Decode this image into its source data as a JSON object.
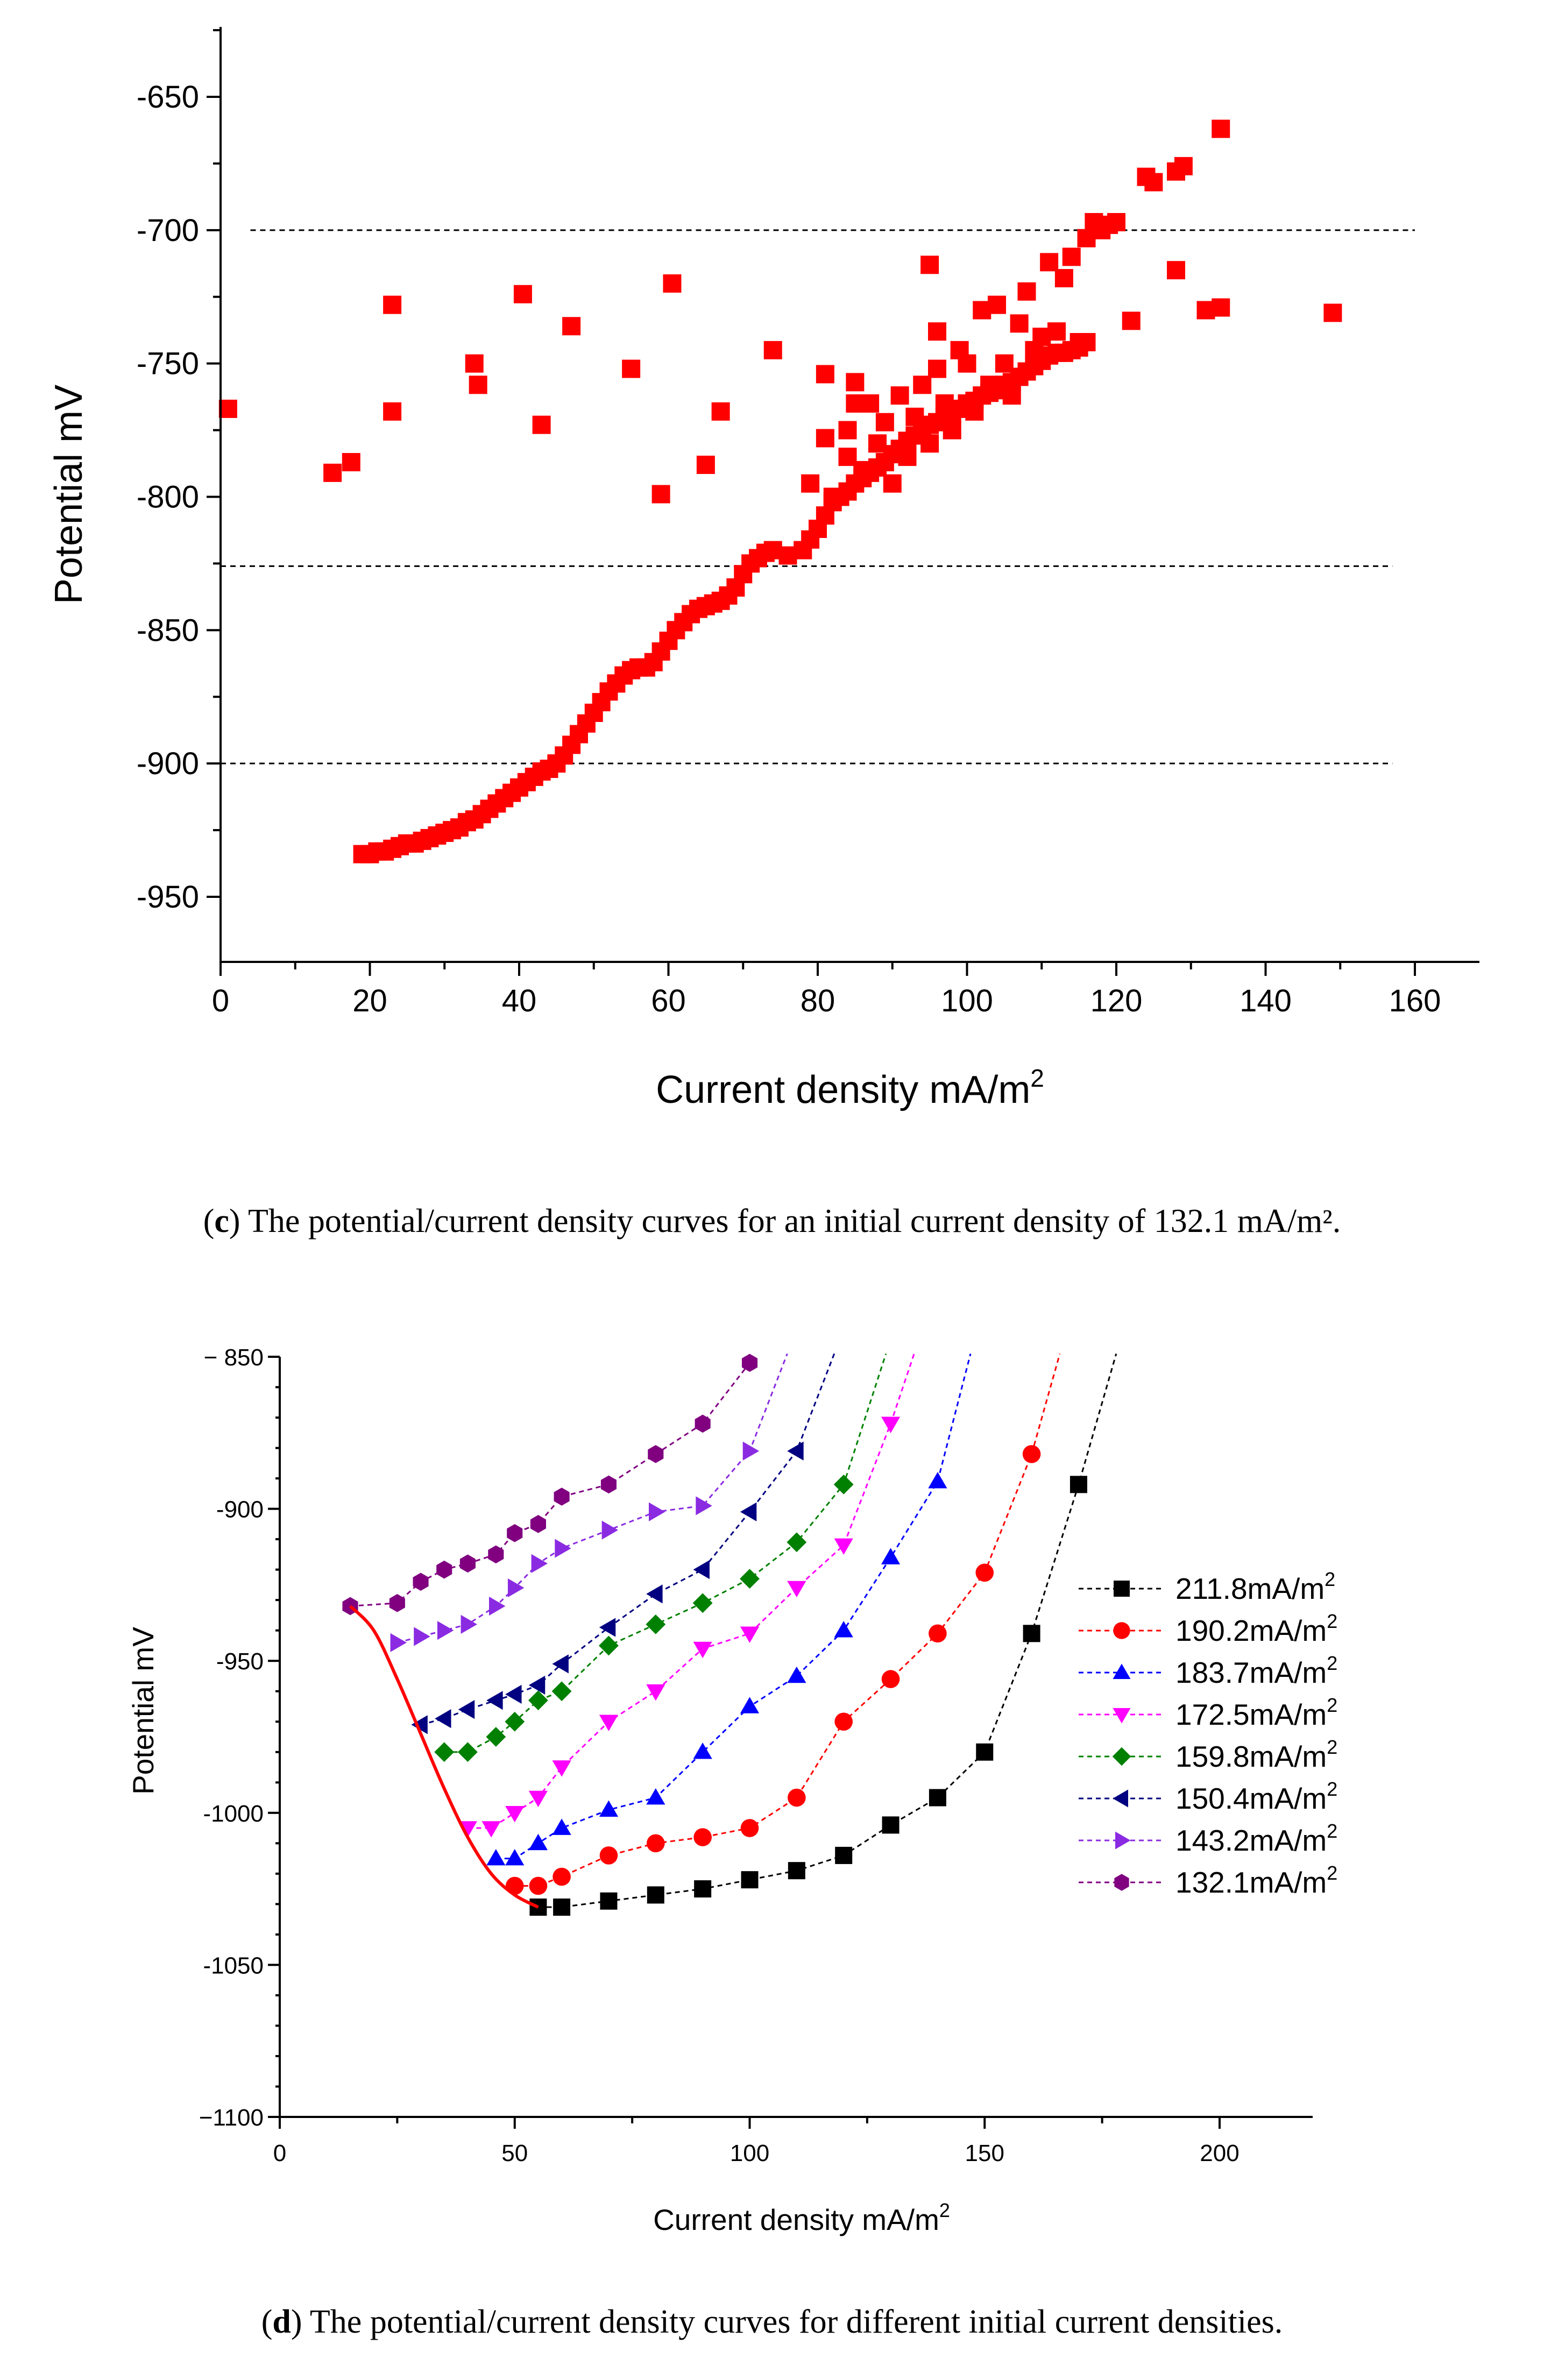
{
  "caption_c": {
    "letter": "c",
    "text": " The potential/current density curves for an initial current density of 132.1 mA/m²."
  },
  "caption_d": {
    "letter": "d",
    "text": " The potential/current density curves for different initial current densities."
  },
  "chart_data": [
    {
      "type": "scatter",
      "title": "",
      "xlabel": "Current density mA/m",
      "xlabel_sup": "2",
      "ylabel": "Potential mV",
      "xlim": [
        0,
        170
      ],
      "ylim": [
        -975,
        -620
      ],
      "xticks": [
        0,
        20,
        40,
        60,
        80,
        100,
        120,
        140,
        160
      ],
      "xtick_labels": [
        "0",
        "20",
        "40",
        "60",
        "80",
        "100",
        "120",
        "140",
        "160"
      ],
      "yticks": [
        -950,
        -900,
        -850,
        -800,
        -750,
        -700,
        -650
      ],
      "ytick_labels": [
        "-950",
        "-900",
        "-850",
        "-800",
        "-750",
        "-700",
        "-650"
      ],
      "reference_lines": [
        {
          "y": -700,
          "x0": 4,
          "x1": 160
        },
        {
          "y": -826,
          "x0": 0,
          "x1": 157
        },
        {
          "y": -900,
          "x0": 0,
          "x1": 157
        }
      ],
      "marker": "square",
      "color": "#ff0000",
      "points": [
        [
          1,
          -767
        ],
        [
          15,
          -791
        ],
        [
          17.5,
          -787
        ],
        [
          23,
          -768
        ],
        [
          23,
          -728
        ],
        [
          34,
          -750
        ],
        [
          34.5,
          -758
        ],
        [
          40.5,
          -724
        ],
        [
          43,
          -773
        ],
        [
          47,
          -736
        ],
        [
          55,
          -752
        ],
        [
          59,
          -799
        ],
        [
          60.5,
          -720
        ],
        [
          65,
          -788
        ],
        [
          67,
          -768
        ],
        [
          74,
          -745
        ],
        [
          81,
          -754
        ],
        [
          95,
          -713
        ],
        [
          122,
          -734
        ],
        [
          128,
          -715
        ],
        [
          132,
          -730
        ],
        [
          134,
          -729
        ],
        [
          149,
          -731
        ],
        [
          19,
          -934
        ],
        [
          20,
          -934
        ],
        [
          21,
          -933
        ],
        [
          22,
          -933
        ],
        [
          23,
          -932
        ],
        [
          24,
          -931
        ],
        [
          25,
          -930
        ],
        [
          26,
          -930
        ],
        [
          27,
          -929
        ],
        [
          28,
          -928
        ],
        [
          29,
          -927
        ],
        [
          30,
          -926
        ],
        [
          31,
          -925
        ],
        [
          32,
          -924
        ],
        [
          33,
          -922
        ],
        [
          34,
          -921
        ],
        [
          35,
          -919
        ],
        [
          36,
          -917
        ],
        [
          37,
          -915
        ],
        [
          38,
          -913
        ],
        [
          39,
          -911
        ],
        [
          40,
          -909
        ],
        [
          41,
          -907
        ],
        [
          42,
          -905
        ],
        [
          43,
          -903
        ],
        [
          44,
          -902
        ],
        [
          45,
          -900
        ],
        [
          46,
          -897
        ],
        [
          47,
          -893
        ],
        [
          48,
          -889
        ],
        [
          49,
          -885
        ],
        [
          50,
          -881
        ],
        [
          51,
          -877
        ],
        [
          52,
          -873
        ],
        [
          53,
          -870
        ],
        [
          54,
          -867
        ],
        [
          55,
          -865
        ],
        [
          56,
          -864
        ],
        [
          57,
          -864
        ],
        [
          58,
          -862
        ],
        [
          59,
          -858
        ],
        [
          60,
          -854
        ],
        [
          61,
          -850
        ],
        [
          62,
          -847
        ],
        [
          63,
          -844
        ],
        [
          64,
          -842
        ],
        [
          65,
          -841
        ],
        [
          66,
          -840
        ],
        [
          67,
          -839
        ],
        [
          68,
          -837
        ],
        [
          69,
          -834
        ],
        [
          70,
          -829
        ],
        [
          71,
          -825
        ],
        [
          72,
          -823
        ],
        [
          73,
          -821
        ],
        [
          74,
          -820
        ],
        [
          76,
          -822
        ],
        [
          78,
          -820
        ],
        [
          79,
          -816
        ],
        [
          80,
          -812
        ],
        [
          81,
          -807
        ],
        [
          82,
          -802
        ],
        [
          83,
          -800
        ],
        [
          84,
          -798
        ],
        [
          85,
          -795
        ],
        [
          86,
          -793
        ],
        [
          87,
          -791
        ],
        [
          88,
          -789
        ],
        [
          89,
          -787
        ],
        [
          90,
          -784
        ],
        [
          91,
          -782
        ],
        [
          92,
          -779
        ],
        [
          93,
          -777
        ],
        [
          94,
          -775
        ],
        [
          95,
          -773
        ],
        [
          96,
          -772
        ],
        [
          97,
          -770
        ],
        [
          98,
          -769
        ],
        [
          99,
          -767
        ],
        [
          100,
          -765
        ],
        [
          101,
          -764
        ],
        [
          102,
          -762
        ],
        [
          103,
          -761
        ],
        [
          104,
          -760
        ],
        [
          105,
          -758
        ],
        [
          106,
          -757
        ],
        [
          107,
          -755
        ],
        [
          108,
          -753
        ],
        [
          109,
          -751
        ],
        [
          110,
          -749
        ],
        [
          111,
          -747
        ],
        [
          112,
          -746
        ],
        [
          113,
          -746
        ],
        [
          114,
          -745
        ],
        [
          115,
          -744
        ],
        [
          116,
          -742
        ],
        [
          79,
          -795
        ],
        [
          81,
          -778
        ],
        [
          82,
          -800
        ],
        [
          84,
          -785
        ],
        [
          84,
          -775
        ],
        [
          85,
          -765
        ],
        [
          85,
          -757
        ],
        [
          86,
          -790
        ],
        [
          87,
          -765
        ],
        [
          88,
          -780
        ],
        [
          89,
          -772
        ],
        [
          90,
          -795
        ],
        [
          91,
          -762
        ],
        [
          92,
          -785
        ],
        [
          93,
          -770
        ],
        [
          94,
          -758
        ],
        [
          95,
          -780
        ],
        [
          96,
          -752
        ],
        [
          96,
          -738
        ],
        [
          97,
          -765
        ],
        [
          98,
          -775
        ],
        [
          99,
          -745
        ],
        [
          100,
          -750
        ],
        [
          101,
          -768
        ],
        [
          102,
          -730
        ],
        [
          103,
          -758
        ],
        [
          104,
          -728
        ],
        [
          105,
          -750
        ],
        [
          106,
          -762
        ],
        [
          107,
          -735
        ],
        [
          108,
          -723
        ],
        [
          109,
          -745
        ],
        [
          110,
          -740
        ],
        [
          111,
          -712
        ],
        [
          112,
          -738
        ],
        [
          113,
          -718
        ],
        [
          114,
          -710
        ],
        [
          115,
          -742
        ],
        [
          116,
          -703
        ],
        [
          117,
          -697
        ],
        [
          118,
          -700
        ],
        [
          119,
          -698
        ],
        [
          120,
          -697
        ],
        [
          124,
          -680
        ],
        [
          125,
          -682
        ],
        [
          128,
          -678
        ],
        [
          129,
          -676
        ],
        [
          134,
          -662
        ]
      ]
    },
    {
      "type": "line",
      "title": "",
      "xlabel": "Current density mA/m",
      "xlabel_sup": "2",
      "ylabel": "Potential mV",
      "xlim": [
        0,
        220
      ],
      "ylim": [
        -1100,
        -850
      ],
      "xticks": [
        0,
        50,
        100,
        150,
        200
      ],
      "xtick_labels": [
        "0",
        "50",
        "100",
        "150",
        "200"
      ],
      "yticks": [
        -1100,
        -1050,
        -1000,
        -950,
        -900,
        -850
      ],
      "ytick_labels": [
        "−1100",
        "-1050",
        "-1000",
        "-950",
        "-900",
        "− 850"
      ],
      "legend_position": "right",
      "series": [
        {
          "name": "211.8mA/m",
          "sup": "2",
          "color": "#000000",
          "marker": "square",
          "x": [
            55,
            60,
            70,
            80,
            90,
            100,
            110,
            120,
            130,
            140,
            150,
            160,
            170
          ],
          "y": [
            -1031,
            -1031,
            -1029,
            -1027,
            -1025,
            -1022,
            -1019,
            -1014,
            -1004,
            -995,
            -980,
            -941,
            -892
          ],
          "tail": [
            178,
            -849
          ]
        },
        {
          "name": "190.2mA/m",
          "sup": "2",
          "color": "#ff0000",
          "marker": "circle",
          "x": [
            50,
            55,
            60,
            70,
            80,
            90,
            100,
            110,
            120,
            130,
            140,
            150,
            160
          ],
          "y": [
            -1024,
            -1024,
            -1021,
            -1014,
            -1010,
            -1008,
            -1005,
            -995,
            -970,
            -956,
            -941,
            -921,
            -882
          ],
          "tail": [
            166,
            -849
          ]
        },
        {
          "name": "183.7mA/m",
          "sup": "2",
          "color": "#0000ff",
          "marker": "triangle-up",
          "x": [
            46,
            50,
            55,
            60,
            70,
            80,
            90,
            100,
            110,
            120,
            130,
            140
          ],
          "y": [
            -1015,
            -1015,
            -1010,
            -1005,
            -999,
            -995,
            -980,
            -965,
            -955,
            -940,
            -916,
            -891
          ],
          "tail": [
            147,
            -849
          ]
        },
        {
          "name": "172.5mA/m",
          "sup": "2",
          "color": "#ff00ff",
          "marker": "triangle-down",
          "x": [
            40,
            45,
            50,
            55,
            60,
            70,
            80,
            90,
            100,
            110,
            120,
            130
          ],
          "y": [
            -1005,
            -1005,
            -1000,
            -995,
            -985,
            -970,
            -960,
            -946,
            -941,
            -926,
            -912,
            -872
          ],
          "tail": [
            135,
            -849
          ]
        },
        {
          "name": "159.8mA/m",
          "sup": "2",
          "color": "#008000",
          "marker": "diamond",
          "x": [
            35,
            40,
            46,
            50,
            55,
            60,
            70,
            80,
            90,
            100,
            110,
            120
          ],
          "y": [
            -980,
            -980,
            -975,
            -970,
            -963,
            -960,
            -945,
            -938,
            -931,
            -923,
            -911,
            -892
          ],
          "tail": [
            129,
            -849
          ]
        },
        {
          "name": "150.4mA/m",
          "sup": "2",
          "color": "#000080",
          "marker": "triangle-left",
          "x": [
            30,
            35,
            40,
            46,
            50,
            55,
            60,
            70,
            80,
            90,
            100,
            110
          ],
          "y": [
            -971,
            -969,
            -966,
            -963,
            -961,
            -958,
            -951,
            -939,
            -928,
            -920,
            -901,
            -881
          ],
          "tail": [
            118,
            -849
          ]
        },
        {
          "name": "143.2mA/m",
          "sup": "2",
          "color": "#8a2be2",
          "marker": "triangle-right",
          "x": [
            25,
            30,
            35,
            40,
            46,
            50,
            55,
            60,
            70,
            80,
            90,
            100
          ],
          "y": [
            -944,
            -942,
            -940,
            -938,
            -932,
            -926,
            -918,
            -913,
            -907,
            -901,
            -899,
            -881
          ],
          "tail": [
            108,
            -849
          ]
        },
        {
          "name": "132.1mA/m",
          "sup": "2",
          "color": "#800080",
          "marker": "hexagon",
          "x": [
            15,
            25,
            30,
            35,
            40,
            46,
            50,
            55,
            60,
            70,
            80,
            90,
            100
          ],
          "y": [
            -932,
            -931,
            -924,
            -920,
            -918,
            -915,
            -908,
            -905,
            -896,
            -892,
            -882,
            -872,
            -852
          ],
          "tail": null
        }
      ],
      "envelope_curve": {
        "color": "#ff0000",
        "x": [
          15,
          20,
          25,
          30,
          35,
          40,
          45,
          50,
          55
        ],
        "y": [
          -932,
          -940,
          -956,
          -974,
          -992,
          -1008,
          -1020,
          -1027,
          -1031
        ]
      }
    }
  ]
}
